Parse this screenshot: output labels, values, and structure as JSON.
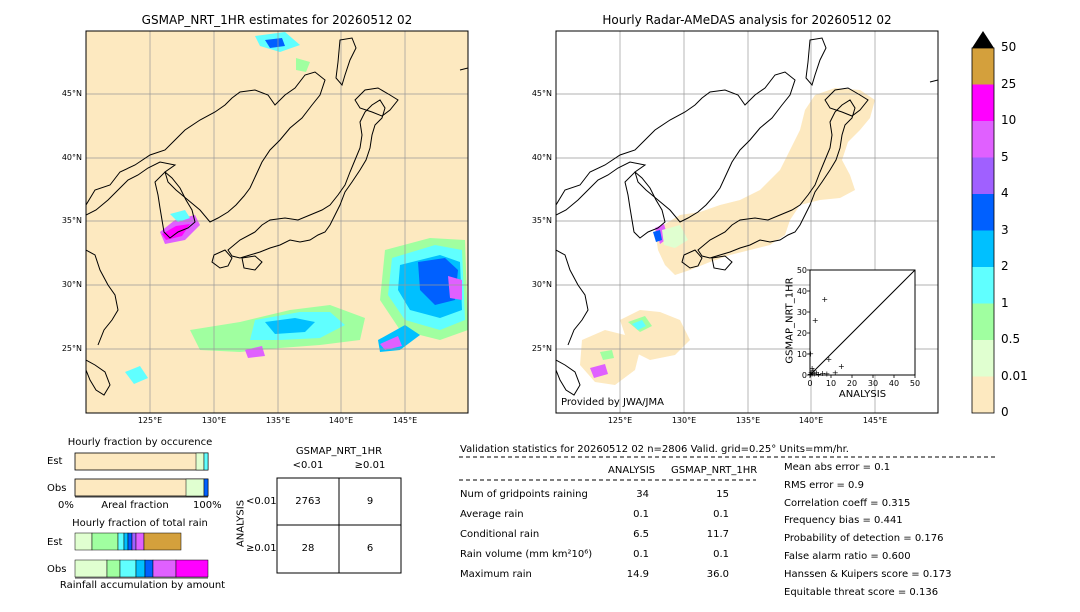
{
  "maps": {
    "left_title": "GSMAP_NRT_1HR estimates for 20260512 02",
    "right_title": "Hourly Radar-AMeDAS analysis for 20260512 02",
    "lat_labels": [
      "45°N",
      "40°N",
      "35°N",
      "30°N",
      "25°N"
    ],
    "lon_labels": [
      "125°E",
      "130°E",
      "135°E",
      "140°E",
      "145°E"
    ],
    "provided_by": "Provided by JWA/JMA"
  },
  "colorbar": {
    "labels": [
      "50",
      "25",
      "10",
      "5",
      "4",
      "3",
      "2",
      "1",
      "0.5",
      "0.01",
      "0"
    ],
    "colors": [
      "#d4a03c",
      "#ff00ff",
      "#e060ff",
      "#a060ff",
      "#0060ff",
      "#00c0ff",
      "#60ffff",
      "#a0ffa0",
      "#e0ffd0",
      "#fde9c0"
    ]
  },
  "fraction_occurrence": {
    "title": "Hourly fraction by occurence",
    "rows": [
      "Est",
      "Obs"
    ],
    "axis_left": "0%",
    "axis_mid": "Areal fraction",
    "axis_right": "100%"
  },
  "fraction_total": {
    "title": "Hourly fraction of total rain",
    "rows": [
      "Est",
      "Obs"
    ],
    "footer": "Rainfall accumulation by amount"
  },
  "contingency": {
    "title": "GSMAP_NRT_1HR",
    "col_lt": "<0.01",
    "col_ge": "≥0.01",
    "row_axis": "ANALYSIS",
    "row_lt": "<0.01",
    "row_ge": "≥0.01",
    "cells": [
      "2763",
      "9",
      "28",
      "6"
    ]
  },
  "validation": {
    "header": "Validation statistics for 20260512 02  n=2806 Valid. grid=0.25° Units=mm/hr.",
    "col_analysis": "ANALYSIS",
    "col_gsmap": "GSMAP_NRT_1HR",
    "rows": [
      {
        "label": "Num of gridpoints raining",
        "analysis": "34",
        "gsmap": "15"
      },
      {
        "label": "Average rain",
        "analysis": "0.1",
        "gsmap": "0.1"
      },
      {
        "label": "Conditional rain",
        "analysis": "6.5",
        "gsmap": "11.7"
      },
      {
        "label": "Rain volume (mm km²10⁶)",
        "analysis": "0.1",
        "gsmap": "0.1"
      },
      {
        "label": "Maximum rain",
        "analysis": "14.9",
        "gsmap": "36.0"
      }
    ],
    "scores": [
      "Mean abs error =    0.1",
      "RMS error =    0.9",
      "Correlation coeff =  0.315",
      "Frequency bias =  0.441",
      "Probability of detection =  0.176",
      "False alarm ratio =  0.600",
      "Hanssen & Kuipers score =  0.173",
      "Equitable threat score =  0.136"
    ]
  },
  "chart_data": {
    "type": "scatter",
    "xlabel": "ANALYSIS",
    "ylabel": "GSMAP_NRT_1HR",
    "xlim": [
      0,
      50
    ],
    "ylim": [
      0,
      50
    ],
    "ticks": [
      "0",
      "10",
      "20",
      "30",
      "40",
      "50"
    ],
    "points": [
      [
        0.2,
        0.3
      ],
      [
        0.5,
        1.0
      ],
      [
        1,
        0.5
      ],
      [
        1.5,
        2
      ],
      [
        2,
        0.5
      ],
      [
        3,
        1
      ],
      [
        2.5,
        26
      ],
      [
        7,
        36
      ],
      [
        9,
        7.5
      ],
      [
        14.9,
        4
      ],
      [
        12,
        1
      ],
      [
        6,
        0.8
      ],
      [
        0.3,
        10
      ],
      [
        1,
        3
      ],
      [
        4,
        0.3
      ],
      [
        8,
        0.5
      ]
    ]
  }
}
